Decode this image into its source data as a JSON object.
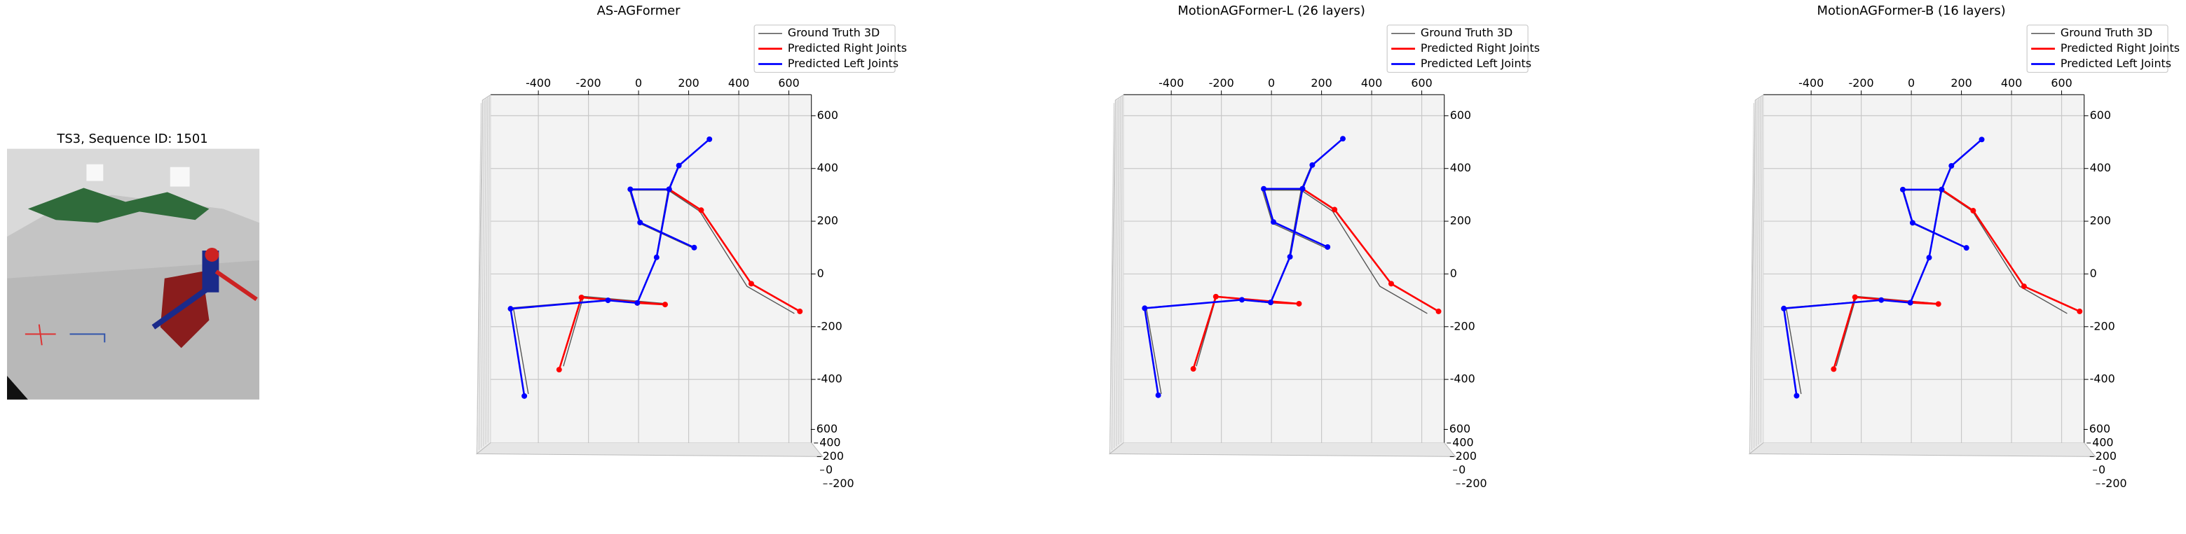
{
  "image": {
    "title": "TS3, Sequence ID: 1501"
  },
  "chart_data": [
    {
      "type": "skeleton",
      "title": "AS-AGFormer",
      "xlim": [
        -590,
        690
      ],
      "ylim": [
        -640,
        680
      ],
      "zlim": [
        -250,
        650
      ],
      "xticks": [
        -400,
        -200,
        0,
        200,
        400,
        600
      ],
      "yticks": [
        600,
        400,
        200,
        0,
        -200,
        -400
      ],
      "zticks": [
        600,
        400,
        200,
        0,
        -200
      ],
      "series": [
        {
          "name": "Ground Truth 3D",
          "color": "#555555",
          "x": [
            -300,
            -220,
            100,
            -5,
            -118,
            -500,
            -440,
            null,
            -5,
            70,
            118,
            158,
            280,
            null,
            218,
            4,
            -36,
            118,
            244,
            433,
            622
          ],
          "y": [
            -350,
            -85,
            -112,
            -110,
            -98,
            -128,
            -455,
            null,
            -110,
            60,
            318,
            408,
            508,
            null,
            98,
            192,
            318,
            318,
            238,
            -47,
            -150
          ]
        },
        {
          "name": "Predicted Right Joints",
          "color": "#ff0000",
          "x": [
            -317,
            -228,
            106,
            -5,
            null,
            122,
            250,
            450,
            644
          ],
          "y": [
            -363,
            -89,
            -116,
            -110,
            null,
            321,
            242,
            -37,
            -142
          ]
        },
        {
          "name": "Predicted Left Joints",
          "color": "#0000ff",
          "x": [
            -456,
            -511,
            -122,
            -5,
            72,
            122,
            161,
            283,
            null,
            222,
            6,
            -33,
            122
          ],
          "y": [
            -463,
            -132,
            -100,
            -110,
            63,
            321,
            411,
            511,
            null,
            100,
            195,
            321,
            321
          ]
        }
      ]
    },
    {
      "type": "skeleton",
      "title": "MotionAGFormer-L (26 layers)",
      "xlim": [
        -590,
        690
      ],
      "ylim": [
        -640,
        680
      ],
      "zlim": [
        -250,
        650
      ],
      "xticks": [
        -400,
        -200,
        0,
        200,
        400,
        600
      ],
      "yticks": [
        600,
        400,
        200,
        0,
        -200,
        -400
      ],
      "zticks": [
        600,
        400,
        200,
        0,
        -200
      ],
      "series": [
        {
          "name": "Ground Truth 3D",
          "color": "#555555",
          "x": [
            -300,
            -220,
            100,
            -5,
            -118,
            -500,
            -440,
            null,
            -5,
            70,
            118,
            158,
            280,
            null,
            218,
            4,
            -36,
            118,
            244,
            433,
            622
          ],
          "y": [
            -350,
            -85,
            -112,
            -110,
            -98,
            -128,
            -455,
            null,
            -110,
            60,
            318,
            408,
            508,
            null,
            98,
            192,
            318,
            318,
            238,
            -47,
            -150
          ]
        },
        {
          "name": "Predicted Right Joints",
          "color": "#ff0000",
          "x": [
            -312,
            -222,
            110,
            -3,
            null,
            124,
            252,
            478,
            667
          ],
          "y": [
            -360,
            -86,
            -113,
            -108,
            null,
            323,
            244,
            -37,
            -142
          ]
        },
        {
          "name": "Predicted Left Joints",
          "color": "#0000ff",
          "x": [
            -452,
            -506,
            -118,
            -3,
            74,
            124,
            163,
            285,
            null,
            224,
            8,
            -31,
            124
          ],
          "y": [
            -460,
            -130,
            -98,
            -108,
            65,
            323,
            413,
            513,
            null,
            102,
            197,
            323,
            323
          ]
        }
      ]
    },
    {
      "type": "skeleton",
      "title": "MotionAGFormer-B (16 layers)",
      "xlim": [
        -590,
        690
      ],
      "ylim": [
        -640,
        680
      ],
      "zlim": [
        -250,
        650
      ],
      "xticks": [
        -400,
        -200,
        0,
        200,
        400,
        600
      ],
      "yticks": [
        600,
        400,
        200,
        0,
        -200,
        -400
      ],
      "zticks": [
        600,
        400,
        200,
        0,
        -200
      ],
      "series": [
        {
          "name": "Ground Truth 3D",
          "color": "#555555",
          "x": [
            -300,
            -220,
            100,
            -5,
            -118,
            -500,
            -440,
            null,
            -5,
            70,
            118,
            158,
            280,
            null,
            218,
            4,
            -36,
            118,
            244,
            433,
            622
          ],
          "y": [
            -350,
            -85,
            -112,
            -110,
            -98,
            -128,
            -455,
            null,
            -110,
            60,
            318,
            408,
            508,
            null,
            98,
            192,
            318,
            318,
            238,
            -47,
            -150
          ]
        },
        {
          "name": "Predicted Right Joints",
          "color": "#ff0000",
          "x": [
            -310,
            -225,
            108,
            -4,
            null,
            121,
            247,
            450,
            672
          ],
          "y": [
            -361,
            -88,
            -114,
            -109,
            null,
            320,
            240,
            -47,
            -142
          ]
        },
        {
          "name": "Predicted Left Joints",
          "color": "#0000ff",
          "x": [
            -458,
            -509,
            -120,
            -4,
            71,
            121,
            160,
            281,
            null,
            220,
            5,
            -34,
            121
          ],
          "y": [
            -462,
            -131,
            -99,
            -109,
            62,
            320,
            410,
            510,
            null,
            99,
            194,
            320,
            320
          ]
        }
      ]
    }
  ]
}
